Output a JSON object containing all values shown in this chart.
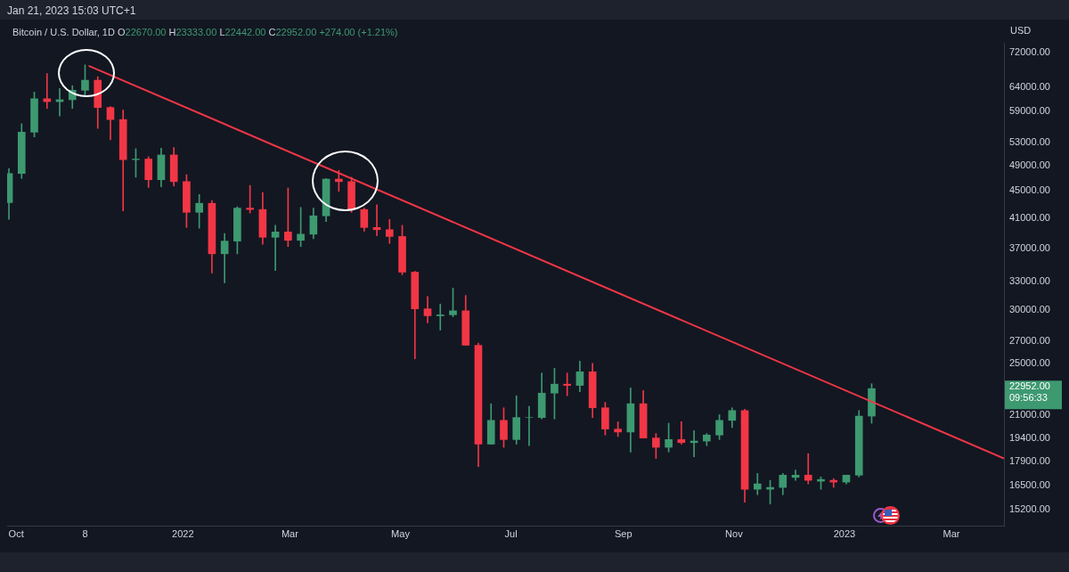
{
  "chart_data": {
    "type": "candlestick",
    "title": "Bitcoin / U.S. Dollar, 1D",
    "subtitle": "O22670.00 H23333.00 L22442.00 C22952.00 +274.00 (+1.21%)",
    "ylabel": "USD",
    "annotations": [
      "Jan 21, 2023 15:03 UTC+1",
      "22952.00",
      "09:56:33"
    ],
    "x": [
      "2021-09-27",
      "2021-10-04",
      "2021-10-11",
      "2021-10-18",
      "2021-10-25",
      "2021-11-01",
      "2021-11-08",
      "2021-11-15",
      "2021-11-22",
      "2021-11-29",
      "2021-12-06",
      "2021-12-13",
      "2021-12-20",
      "2021-12-27",
      "2022-01-03",
      "2022-01-10",
      "2022-01-17",
      "2022-01-24",
      "2022-01-31",
      "2022-02-07",
      "2022-02-14",
      "2022-02-21",
      "2022-02-28",
      "2022-03-07",
      "2022-03-14",
      "2022-03-21",
      "2022-03-28",
      "2022-04-04",
      "2022-04-11",
      "2022-04-18",
      "2022-04-25",
      "2022-05-02",
      "2022-05-09",
      "2022-05-16",
      "2022-05-23",
      "2022-05-30",
      "2022-06-06",
      "2022-06-13",
      "2022-06-20",
      "2022-06-27",
      "2022-07-04",
      "2022-07-11",
      "2022-07-18",
      "2022-07-25",
      "2022-08-01",
      "2022-08-08",
      "2022-08-15",
      "2022-08-22",
      "2022-08-29",
      "2022-09-05",
      "2022-09-12",
      "2022-09-19",
      "2022-09-26",
      "2022-10-03",
      "2022-10-10",
      "2022-10-17",
      "2022-10-24",
      "2022-10-31",
      "2022-11-07",
      "2022-11-14",
      "2022-11-21",
      "2022-11-28",
      "2022-12-05",
      "2022-12-12",
      "2022-12-19",
      "2022-12-26",
      "2023-01-02",
      "2023-01-09",
      "2023-01-16"
    ],
    "ohlc": [
      [
        43200,
        48500,
        40800,
        47700
      ],
      [
        47700,
        56500,
        46900,
        54900
      ],
      [
        54900,
        62900,
        54000,
        61500
      ],
      [
        61500,
        67000,
        59500,
        60900
      ],
      [
        60900,
        63700,
        58000,
        61300
      ],
      [
        61300,
        64300,
        59500,
        63300
      ],
      [
        63300,
        69000,
        62300,
        65500
      ],
      [
        65500,
        66300,
        55600,
        59700
      ],
      [
        59700,
        59900,
        53500,
        57300
      ],
      [
        57300,
        59200,
        42000,
        50000
      ],
      [
        50000,
        51900,
        47100,
        50100
      ],
      [
        50100,
        50500,
        45500,
        46700
      ],
      [
        46700,
        52000,
        45600,
        50800
      ],
      [
        50800,
        52100,
        45700,
        46400
      ],
      [
        46400,
        47500,
        39700,
        41800
      ],
      [
        41800,
        44400,
        39600,
        43100
      ],
      [
        43100,
        43500,
        34000,
        36300
      ],
      [
        36300,
        38900,
        32900,
        37900
      ],
      [
        37900,
        42600,
        36300,
        42400
      ],
      [
        42400,
        45800,
        41700,
        42200
      ],
      [
        42200,
        44700,
        37500,
        38400
      ],
      [
        38400,
        40000,
        34300,
        39100
      ],
      [
        39100,
        45400,
        37200,
        38000
      ],
      [
        38000,
        42500,
        37200,
        38800
      ],
      [
        38800,
        42400,
        38200,
        41300
      ],
      [
        41300,
        46900,
        40500,
        46800
      ],
      [
        46800,
        48200,
        44900,
        46400
      ],
      [
        46400,
        47100,
        41800,
        42200
      ],
      [
        42200,
        42400,
        39200,
        39700
      ],
      [
        39700,
        42900,
        38600,
        39400
      ],
      [
        39400,
        40800,
        37600,
        38500
      ],
      [
        38500,
        40000,
        33800,
        34100
      ],
      [
        34100,
        34200,
        25400,
        30100
      ],
      [
        30100,
        31400,
        28700,
        29400
      ],
      [
        29400,
        30600,
        28000,
        29500
      ],
      [
        29500,
        32300,
        29300,
        29900
      ],
      [
        29900,
        31500,
        26600,
        26600
      ],
      [
        26600,
        26800,
        17600,
        19000
      ],
      [
        19000,
        21800,
        19000,
        20600
      ],
      [
        20600,
        21500,
        18800,
        19300
      ],
      [
        19300,
        22400,
        19000,
        20800
      ],
      [
        20800,
        21600,
        18900,
        20800
      ],
      [
        20800,
        24200,
        20700,
        22600
      ],
      [
        22600,
        24600,
        20700,
        23300
      ],
      [
        23300,
        24200,
        22400,
        23200
      ],
      [
        23200,
        25200,
        22700,
        24300
      ],
      [
        24300,
        25000,
        20800,
        21500
      ],
      [
        21500,
        21900,
        19600,
        20000
      ],
      [
        20000,
        20500,
        19500,
        19800
      ],
      [
        19800,
        23000,
        18500,
        21800
      ],
      [
        21800,
        22800,
        19400,
        19400
      ],
      [
        19400,
        19700,
        18100,
        18800
      ],
      [
        18800,
        20400,
        18500,
        19300
      ],
      [
        19300,
        20500,
        19000,
        19100
      ],
      [
        19100,
        19900,
        18200,
        19200
      ],
      [
        19200,
        19700,
        18900,
        19600
      ],
      [
        19600,
        21000,
        19300,
        20600
      ],
      [
        20600,
        21500,
        20100,
        21300
      ],
      [
        21300,
        21400,
        15600,
        16300
      ],
      [
        16300,
        17200,
        16000,
        16600
      ],
      [
        16300,
        16800,
        15500,
        16400
      ],
      [
        16400,
        17200,
        16000,
        17100
      ],
      [
        16970,
        17400,
        16800,
        17100
      ],
      [
        17100,
        18400,
        16600,
        16800
      ],
      [
        16750,
        17000,
        16300,
        16850
      ],
      [
        16800,
        16900,
        16400,
        16700
      ],
      [
        16700,
        17100,
        16600,
        17100
      ],
      [
        17100,
        21300,
        17000,
        20900
      ],
      [
        20900,
        23333,
        20400,
        22952
      ]
    ],
    "colors": [
      "#3d9970",
      "#3d9970",
      "#3d9970",
      "#f23645",
      "#3d9970",
      "#3d9970",
      "#3d9970",
      "#f23645",
      "#f23645",
      "#f23645",
      "#3d9970",
      "#f23645",
      "#3d9970",
      "#f23645",
      "#f23645",
      "#3d9970",
      "#f23645",
      "#3d9970",
      "#3d9970",
      "#f23645",
      "#f23645",
      "#3d9970",
      "#f23645",
      "#3d9970",
      "#3d9970",
      "#3d9970",
      "#f23645",
      "#f23645",
      "#f23645",
      "#f23645",
      "#f23645",
      "#f23645",
      "#f23645",
      "#f23645",
      "#3d9970",
      "#3d9970",
      "#f23645",
      "#f23645",
      "#3d9970",
      "#f23645",
      "#3d9970",
      "#3d9970",
      "#3d9970",
      "#3d9970",
      "#f23645",
      "#3d9970",
      "#f23645",
      "#f23645",
      "#f23645",
      "#3d9970",
      "#f23645",
      "#f23645",
      "#3d9970",
      "#f23645",
      "#3d9970",
      "#3d9970",
      "#3d9970",
      "#3d9970",
      "#f23645",
      "#3d9970",
      "#3d9970",
      "#3d9970",
      "#3d9970",
      "#f23645",
      "#3d9970",
      "#f23645",
      "#3d9970",
      "#3d9970",
      "#3d9970"
    ],
    "series": [
      {
        "type": "line",
        "x": [
          "2021-11-10",
          "2023-03-30"
        ],
        "values": [
          68800,
          18100
        ],
        "color": "#f23645"
      }
    ],
    "log": true,
    "ylim": [
      14400,
      74400
    ],
    "yticks": [
      {
        "value": 15200,
        "label": "15200.00"
      },
      {
        "value": 16500,
        "label": "16500.00"
      },
      {
        "value": 17900,
        "label": "17900.00"
      },
      {
        "value": 19400,
        "label": "19400.00"
      },
      {
        "value": 21000,
        "label": "21000.00"
      },
      {
        "value": 25000,
        "label": "25000.00"
      },
      {
        "value": 27000,
        "label": "27000.00"
      },
      {
        "value": 30000,
        "label": "30000.00"
      },
      {
        "value": 33000,
        "label": "33000.00"
      },
      {
        "value": 37000,
        "label": "37000.00"
      },
      {
        "value": 41000,
        "label": "41000.00"
      },
      {
        "value": 45000,
        "label": "45000.00"
      },
      {
        "value": 49000,
        "label": "49000.00"
      },
      {
        "value": 53000,
        "label": "53000.00"
      },
      {
        "value": 59000,
        "label": "59000.00"
      },
      {
        "value": 64000,
        "label": "64000.00"
      },
      {
        "value": 72000,
        "label": "72000.00"
      }
    ],
    "xlim": [
      "2021-09-26",
      "2023-03-30"
    ],
    "xticks": [
      {
        "value": "2021-10-01",
        "label": "Oct"
      },
      {
        "value": "2021-11-08",
        "label": "8"
      },
      {
        "value": "2022-01-01",
        "label": "2022"
      },
      {
        "value": "2022-03-01",
        "label": "Mar"
      },
      {
        "value": "2022-05-01",
        "label": "May"
      },
      {
        "value": "2022-07-01",
        "label": "Jul"
      },
      {
        "value": "2022-09-01",
        "label": "Sep"
      },
      {
        "value": "2022-11-01",
        "label": "Nov"
      },
      {
        "value": "2023-01-01",
        "label": "2023"
      },
      {
        "value": "2023-03-01",
        "label": "Mar"
      }
    ],
    "grid": false,
    "legend": false
  }
}
